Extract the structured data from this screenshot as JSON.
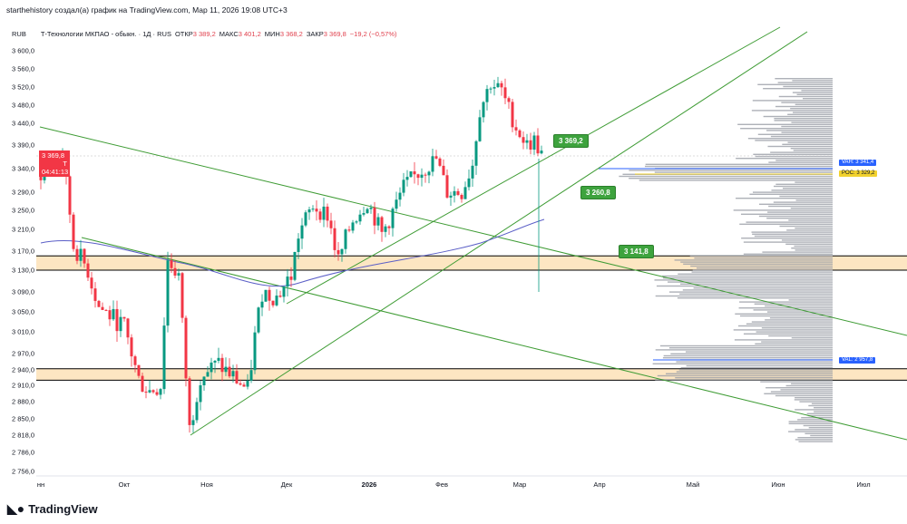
{
  "caption": "starthehistory создал(а) график на TradingView.com, Мар 11, 2026 19:08 UTC+3",
  "legend": {
    "currency": "RUB",
    "symbol": "Т-Технологии МКПАО - обыкн. · 1Д · RUS",
    "open_label": "ОТКР",
    "open": "3 389,2",
    "high_label": "МАКС",
    "high": "3 401,2",
    "low_label": "МИН",
    "low": "3 368,2",
    "close_label": "ЗАКР",
    "close": "3 369,8",
    "change": "−19,2 (−0,57%)"
  },
  "price_tag": {
    "price": "3 369,8",
    "flag": "T",
    "countdown": "04:41:13"
  },
  "y_ticks": [
    {
      "label": "3 600,0",
      "v": 3600
    },
    {
      "label": "3 560,0",
      "v": 3560
    },
    {
      "label": "3 520,0",
      "v": 3520
    },
    {
      "label": "3 480,0",
      "v": 3480
    },
    {
      "label": "3 440,0",
      "v": 3440
    },
    {
      "label": "3 390,0",
      "v": 3390
    },
    {
      "label": "3 340,0",
      "v": 3340
    },
    {
      "label": "3 290,0",
      "v": 3290
    },
    {
      "label": "3 250,0",
      "v": 3250
    },
    {
      "label": "3 210,0",
      "v": 3210
    },
    {
      "label": "3 170,0",
      "v": 3170
    },
    {
      "label": "3 130,0",
      "v": 3130
    },
    {
      "label": "3 090,0",
      "v": 3090
    },
    {
      "label": "3 050,0",
      "v": 3050
    },
    {
      "label": "3 010,0",
      "v": 3010
    },
    {
      "label": "2 970,0",
      "v": 2970
    },
    {
      "label": "2 940,0",
      "v": 2940
    },
    {
      "label": "2 910,0",
      "v": 2910
    },
    {
      "label": "2 880,0",
      "v": 2880
    },
    {
      "label": "2 850,0",
      "v": 2850
    },
    {
      "label": "2 818,0",
      "v": 2818
    },
    {
      "label": "2 786,0",
      "v": 2786
    },
    {
      "label": "2 756,0",
      "v": 2756
    }
  ],
  "x_ticks": [
    "нн",
    "Окт",
    "Ноя",
    "Дек",
    "2026",
    "Фев",
    "Мар",
    "Апр",
    "Май",
    "Июн",
    "Июл"
  ],
  "callouts": [
    "3 369,2",
    "3 260,8",
    "3 141,8"
  ],
  "profile_tags": {
    "vah": "VAH: 3 341,4",
    "poc": "POC: 3 329,2",
    "val": "VAL: 2 957,8"
  },
  "zones": [
    [
      3130,
      3160
    ],
    [
      2920,
      2942
    ]
  ],
  "price_path": [
    [
      0,
      3330
    ],
    [
      6,
      3370
    ],
    [
      9,
      3180
    ],
    [
      13,
      3130
    ],
    [
      16,
      3060
    ],
    [
      23,
      3020
    ],
    [
      27,
      2920
    ],
    [
      30,
      2900
    ],
    [
      33,
      2910
    ],
    [
      35,
      3150
    ],
    [
      38,
      3120
    ],
    [
      41,
      2830
    ],
    [
      44,
      2930
    ],
    [
      49,
      2950
    ],
    [
      54,
      2920
    ],
    [
      57,
      2900
    ],
    [
      59,
      3000
    ],
    [
      61,
      3090
    ],
    [
      65,
      3080
    ],
    [
      69,
      3120
    ],
    [
      71,
      3200
    ],
    [
      75,
      3260
    ],
    [
      79,
      3240
    ],
    [
      82,
      3150
    ],
    [
      86,
      3230
    ],
    [
      90,
      3270
    ],
    [
      94,
      3200
    ],
    [
      96,
      3230
    ],
    [
      100,
      3300
    ],
    [
      104,
      3330
    ],
    [
      109,
      3360
    ],
    [
      112,
      3290
    ],
    [
      116,
      3290
    ],
    [
      119,
      3350
    ],
    [
      121,
      3470
    ],
    [
      124,
      3530
    ],
    [
      127,
      3510
    ],
    [
      131,
      3430
    ],
    [
      134,
      3390
    ],
    [
      136,
      3400
    ],
    [
      138,
      3370
    ]
  ],
  "colors": {
    "up": "#089981",
    "down": "#f23645",
    "trend": "#3f9c35",
    "zone": "#fde6c2",
    "ma": "#5b5fc7"
  },
  "brand": "TradingView"
}
